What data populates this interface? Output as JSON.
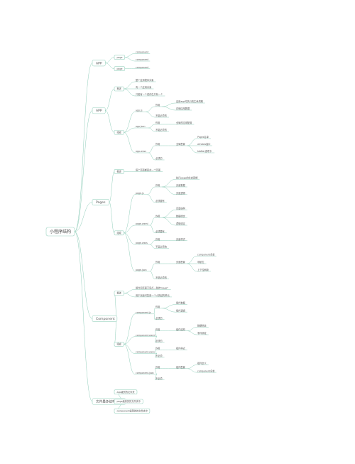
{
  "root": "小程序结构",
  "branches": [
    {
      "label": "APP",
      "children": [
        {
          "label": "page",
          "children": [
            {
              "label": "component"
            },
            {
              "label": "component"
            }
          ]
        },
        {
          "label": "page",
          "children": [
            {
              "label": "component"
            }
          ]
        }
      ]
    },
    {
      "label": "APP",
      "children": [
        {
          "label": "概述",
          "children": [
            {
              "label": "整个应用程序对象"
            },
            {
              "label": "有一个应用对象"
            },
            {
              "label": "只能有一个或存在只有一个"
            }
          ]
        },
        {
          "label": "组成",
          "children": [
            {
              "label": "app.js",
              "children": [
                {
                  "label": "作用",
                  "children": [
                    {
                      "label": "应用app时执行的生命周期"
                    },
                    {
                      "label": "存储应用数据"
                    }
                  ]
                },
                {
                  "label": "不能必须的"
                }
              ]
            },
            {
              "label": "app.json",
              "children": [
                {
                  "label": "作用",
                  "children": [
                    {
                      "label": "全局的应用配置"
                    }
                  ]
                },
                {
                  "label": "不能必须的"
                }
              ]
            },
            {
              "label": "app.wxss",
              "children": [
                {
                  "label": "作用",
                  "children": [
                    {
                      "label": "全局配置",
                      "children": [
                        {
                          "label": "Pages名单"
                        },
                        {
                          "label": "window窗口"
                        },
                        {
                          "label": "tabBar选项卡"
                        }
                      ]
                    }
                  ]
                },
                {
                  "label": "必须的"
                }
              ]
            }
          ]
        }
      ]
    },
    {
      "label": "Pages",
      "children": [
        {
          "label": "概述",
          "children": [
            {
              "label": "每个页面都是对一个页面"
            }
          ]
        },
        {
          "label": "组成",
          "children": [
            {
              "label": "page.js",
              "children": [
                {
                  "label": "作用",
                  "children": [
                    {
                      "label": "执行page的生命周期"
                    },
                    {
                      "label": "页面数据"
                    },
                    {
                      "label": "页面逻辑"
                    }
                  ]
                },
                {
                  "label": "必须要有"
                }
              ]
            },
            {
              "label": "page.wxml",
              "children": [
                {
                  "label": "作用",
                  "children": [
                    {
                      "label": "页面结构"
                    },
                    {
                      "label": "数据绑定"
                    },
                    {
                      "label": "逻辑绑定"
                    }
                  ]
                },
                {
                  "label": "必须要有"
                }
              ]
            },
            {
              "label": "page.wxss",
              "children": [
                {
                  "label": "作用",
                  "children": [
                    {
                      "label": "页面样式"
                    }
                  ]
                },
                {
                  "label": "不是必须的"
                }
              ]
            },
            {
              "label": "page.json",
              "children": [
                {
                  "label": "作用",
                  "children": [
                    {
                      "label": "页面配置",
                      "children": [
                        {
                          "label": "component名单"
                        },
                        {
                          "label": "导航栏"
                        },
                        {
                          "label": "上下拉刷新"
                        }
                      ]
                    }
                  ]
                },
                {
                  "label": "不是必须的"
                }
              ]
            }
          ]
        }
      ]
    },
    {
      "label": "Component",
      "children": [
        {
          "label": "概述",
          "children": [
            {
              "label": "组件和页面不同点一致的\"page\""
            },
            {
              "label": "用于页面可复用一个小的结构单元"
            }
          ]
        },
        {
          "label": "组成",
          "children": [
            {
              "label": "component.js",
              "children": [
                {
                  "label": "作用",
                  "children": [
                    {
                      "label": "组件数据"
                    },
                    {
                      "label": "组件逻辑"
                    }
                  ]
                },
                {
                  "label": "必须的"
                }
              ]
            },
            {
              "label": "component.wxml",
              "children": [
                {
                  "label": "作用",
                  "children": [
                    {
                      "label": "组件结构",
                      "children": [
                        {
                          "label": "数据绑定"
                        },
                        {
                          "label": "事件绑定"
                        }
                      ]
                    }
                  ]
                },
                {
                  "label": "必须的"
                }
              ]
            },
            {
              "label": "component.wxss",
              "children": [
                {
                  "label": "作用",
                  "children": [
                    {
                      "label": "组件样式"
                    }
                  ]
                },
                {
                  "label": "不必须"
                }
              ]
            },
            {
              "label": "component.json",
              "children": [
                {
                  "label": "作用",
                  "children": [
                    {
                      "label": "组件配置",
                      "children": [
                        {
                          "label": "组件定义"
                        },
                        {
                          "label": "component名单"
                        }
                      ]
                    }
                  ]
                },
                {
                  "label": "不必须"
                }
              ]
            }
          ]
        }
      ]
    },
    {
      "label": "文件最多结构速览",
      "children": [
        {
          "label": "app级别的文件夹"
        },
        {
          "label": "page级别的的文件夹中"
        },
        {
          "label": "component级别的的文件夹中"
        }
      ]
    }
  ]
}
